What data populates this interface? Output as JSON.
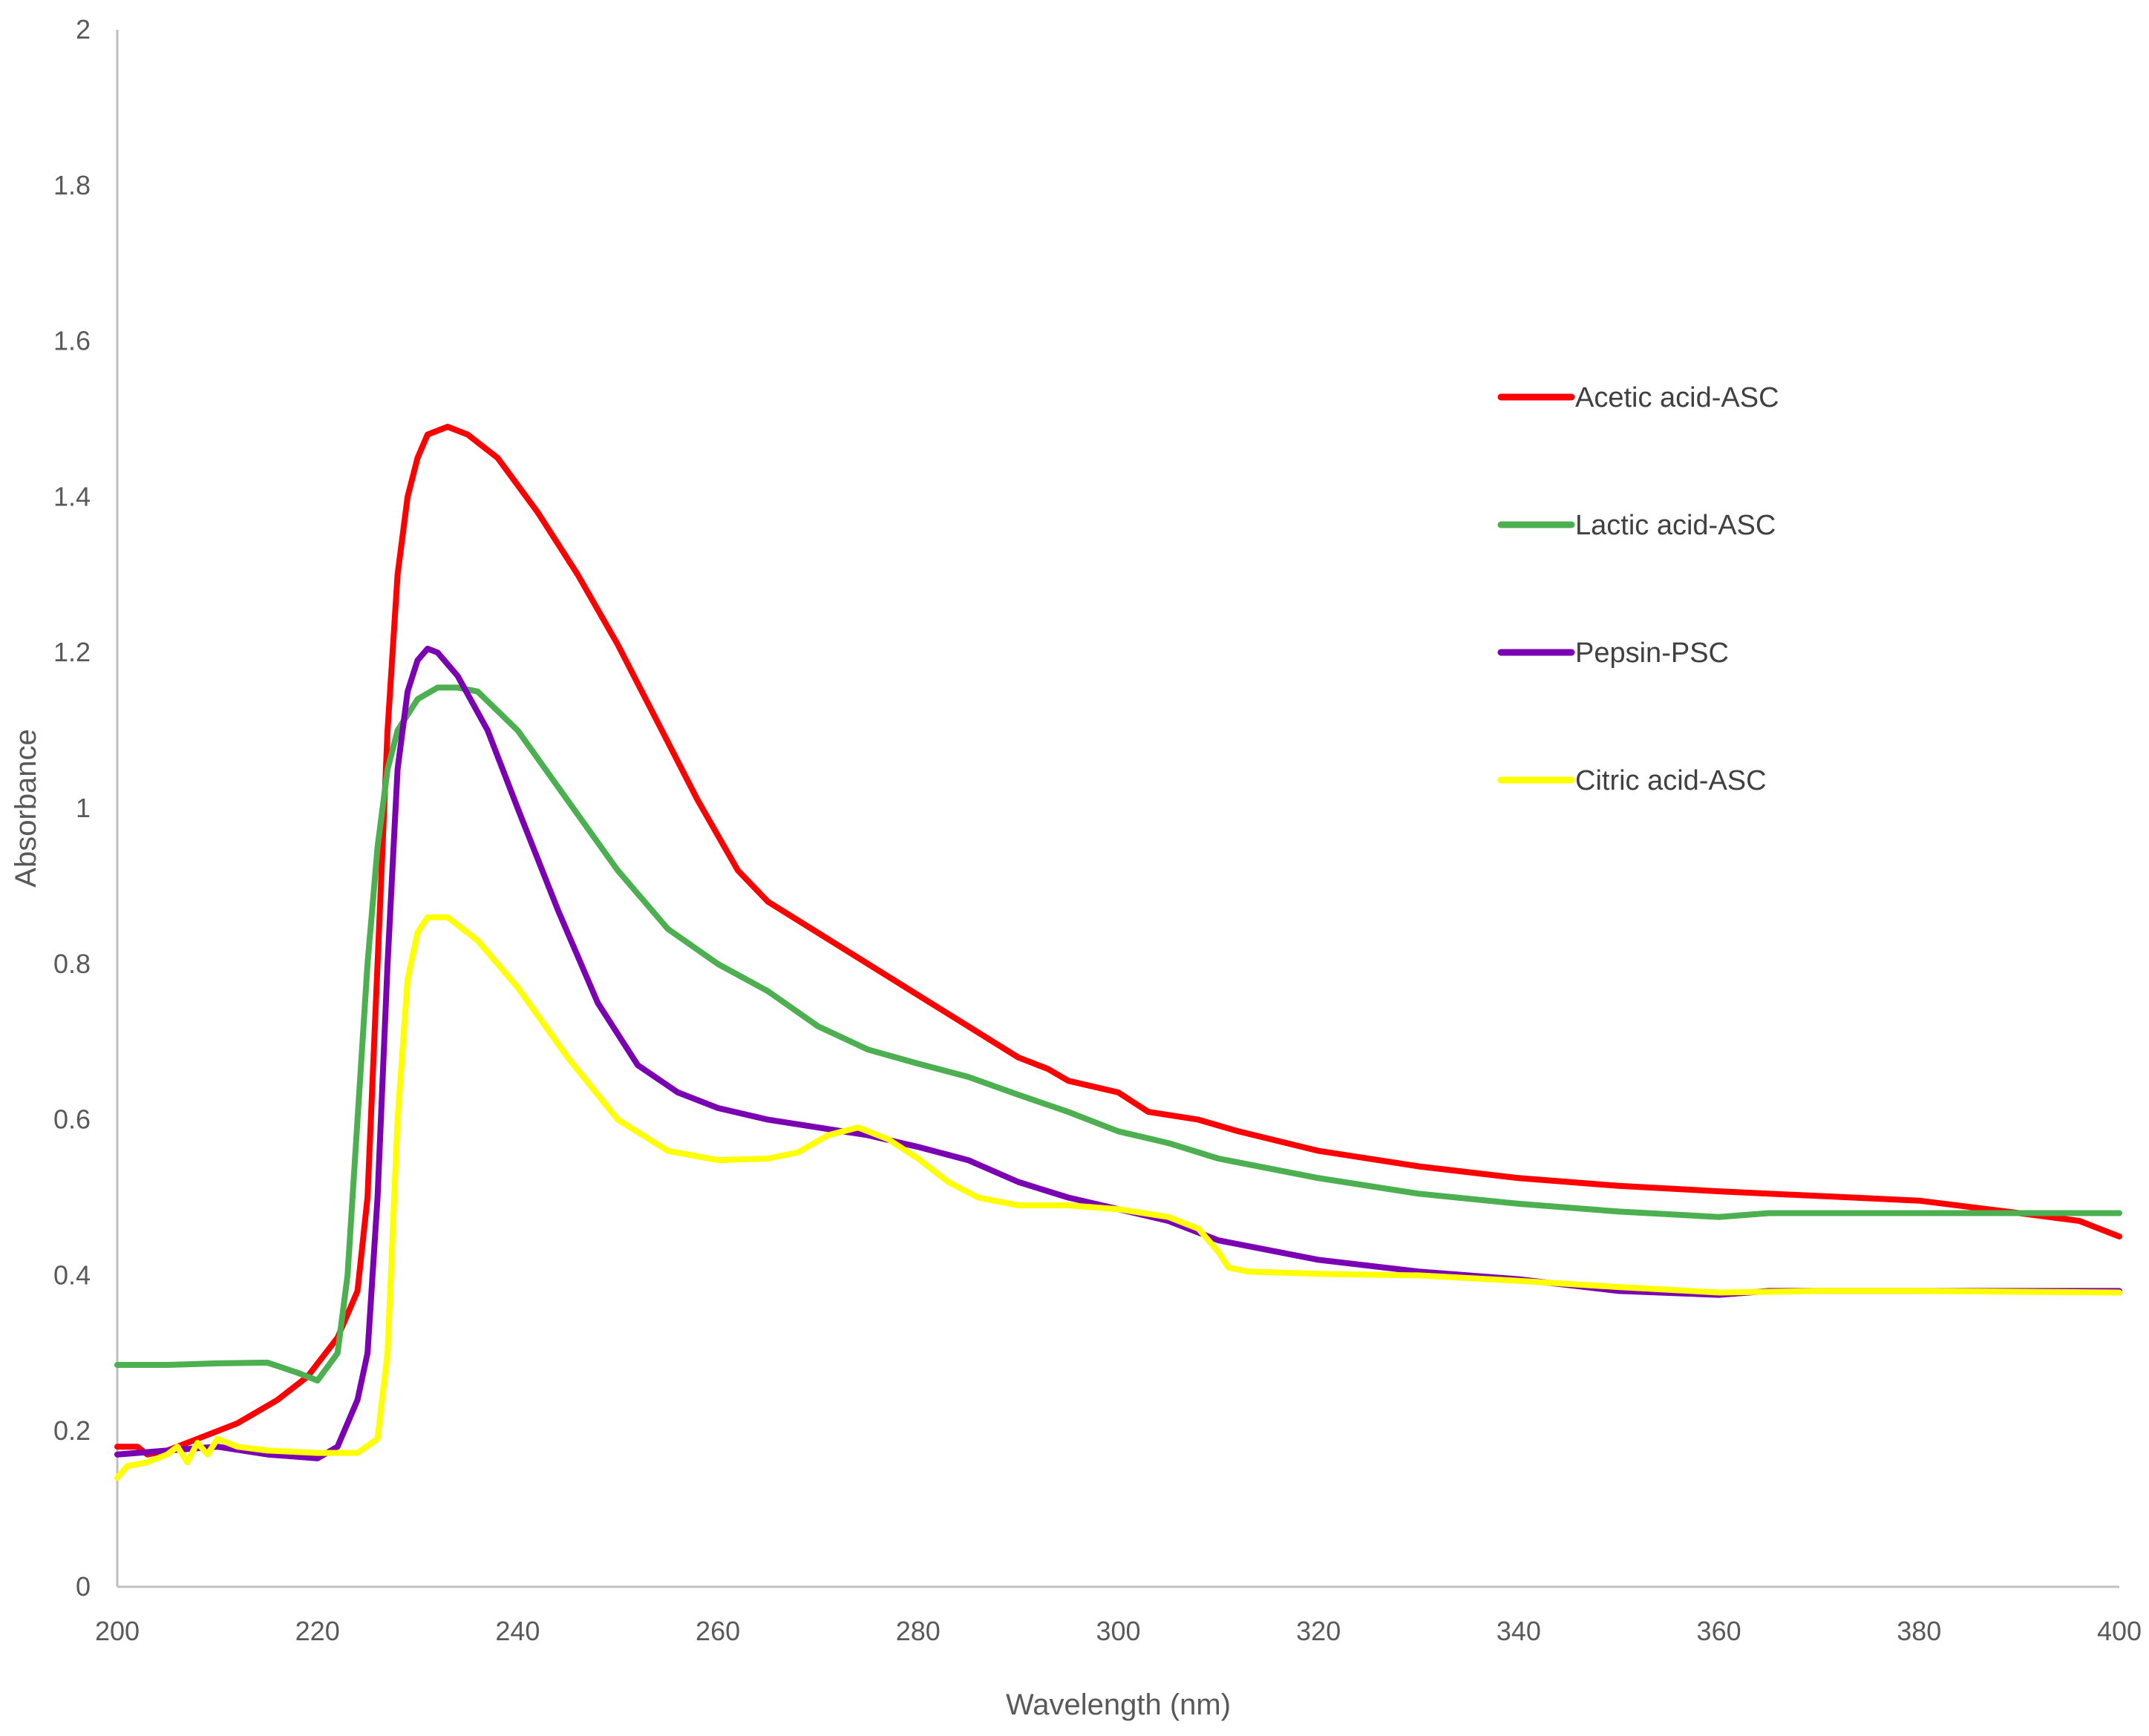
{
  "chart_data": {
    "type": "line",
    "title": "",
    "xlabel": "Wavelength (nm)",
    "ylabel": "Absorbance",
    "xlim": [
      200,
      400
    ],
    "ylim": [
      0,
      2
    ],
    "xticks": [
      "200",
      "220",
      "240",
      "260",
      "280",
      "300",
      "320",
      "340",
      "360",
      "380",
      "400"
    ],
    "yticks": [
      "0",
      "0.2",
      "0.4",
      "0.6",
      "0.8",
      "1",
      "1.2",
      "1.4",
      "1.6",
      "1.8",
      "2"
    ],
    "grid": false,
    "legend_position": "right",
    "series": [
      {
        "name": "Acetic acid-ASC",
        "color": "#ff0000",
        "points": [
          [
            200,
            0.18
          ],
          [
            202,
            0.18
          ],
          [
            203,
            0.17
          ],
          [
            205,
            0.175
          ],
          [
            208,
            0.19
          ],
          [
            212,
            0.21
          ],
          [
            216,
            0.24
          ],
          [
            219,
            0.27
          ],
          [
            222,
            0.32
          ],
          [
            224,
            0.38
          ],
          [
            225,
            0.5
          ],
          [
            226,
            0.8
          ],
          [
            227,
            1.1
          ],
          [
            228,
            1.3
          ],
          [
            229,
            1.4
          ],
          [
            230,
            1.45
          ],
          [
            231,
            1.48
          ],
          [
            233,
            1.49
          ],
          [
            235,
            1.48
          ],
          [
            238,
            1.45
          ],
          [
            242,
            1.38
          ],
          [
            246,
            1.3
          ],
          [
            250,
            1.21
          ],
          [
            254,
            1.11
          ],
          [
            258,
            1.01
          ],
          [
            262,
            0.92
          ],
          [
            265,
            0.88
          ],
          [
            270,
            0.84
          ],
          [
            275,
            0.8
          ],
          [
            280,
            0.76
          ],
          [
            285,
            0.72
          ],
          [
            290,
            0.68
          ],
          [
            293,
            0.665
          ],
          [
            295,
            0.65
          ],
          [
            300,
            0.635
          ],
          [
            303,
            0.61
          ],
          [
            308,
            0.6
          ],
          [
            312,
            0.585
          ],
          [
            320,
            0.56
          ],
          [
            330,
            0.54
          ],
          [
            340,
            0.525
          ],
          [
            350,
            0.515
          ],
          [
            360,
            0.508
          ],
          [
            370,
            0.502
          ],
          [
            380,
            0.496
          ],
          [
            390,
            0.48
          ],
          [
            396,
            0.47
          ],
          [
            400,
            0.45
          ]
        ]
      },
      {
        "name": "Lactic acid-ASC",
        "color": "#4caf50",
        "points": [
          [
            200,
            0.285
          ],
          [
            205,
            0.285
          ],
          [
            210,
            0.287
          ],
          [
            215,
            0.288
          ],
          [
            218,
            0.275
          ],
          [
            220,
            0.265
          ],
          [
            222,
            0.3
          ],
          [
            223,
            0.4
          ],
          [
            224,
            0.6
          ],
          [
            225,
            0.8
          ],
          [
            226,
            0.95
          ],
          [
            227,
            1.05
          ],
          [
            228,
            1.1
          ],
          [
            230,
            1.14
          ],
          [
            232,
            1.155
          ],
          [
            234,
            1.155
          ],
          [
            236,
            1.15
          ],
          [
            240,
            1.1
          ],
          [
            245,
            1.01
          ],
          [
            250,
            0.92
          ],
          [
            255,
            0.845
          ],
          [
            260,
            0.8
          ],
          [
            265,
            0.765
          ],
          [
            270,
            0.72
          ],
          [
            275,
            0.69
          ],
          [
            280,
            0.672
          ],
          [
            285,
            0.655
          ],
          [
            290,
            0.632
          ],
          [
            295,
            0.61
          ],
          [
            300,
            0.585
          ],
          [
            305,
            0.57
          ],
          [
            310,
            0.55
          ],
          [
            320,
            0.525
          ],
          [
            330,
            0.505
          ],
          [
            340,
            0.492
          ],
          [
            350,
            0.482
          ],
          [
            360,
            0.475
          ],
          [
            365,
            0.48
          ],
          [
            370,
            0.48
          ],
          [
            380,
            0.48
          ],
          [
            390,
            0.48
          ],
          [
            400,
            0.48
          ]
        ]
      },
      {
        "name": "Pepsin-PSC",
        "color": "#7b00b4",
        "points": [
          [
            200,
            0.17
          ],
          [
            205,
            0.175
          ],
          [
            210,
            0.18
          ],
          [
            215,
            0.17
          ],
          [
            220,
            0.165
          ],
          [
            222,
            0.18
          ],
          [
            224,
            0.24
          ],
          [
            225,
            0.3
          ],
          [
            226,
            0.5
          ],
          [
            227,
            0.8
          ],
          [
            228,
            1.05
          ],
          [
            229,
            1.15
          ],
          [
            230,
            1.19
          ],
          [
            231,
            1.205
          ],
          [
            232,
            1.2
          ],
          [
            234,
            1.17
          ],
          [
            237,
            1.1
          ],
          [
            240,
            1.0
          ],
          [
            244,
            0.87
          ],
          [
            248,
            0.75
          ],
          [
            252,
            0.67
          ],
          [
            256,
            0.635
          ],
          [
            260,
            0.615
          ],
          [
            265,
            0.6
          ],
          [
            270,
            0.59
          ],
          [
            275,
            0.58
          ],
          [
            280,
            0.565
          ],
          [
            285,
            0.548
          ],
          [
            290,
            0.52
          ],
          [
            295,
            0.5
          ],
          [
            300,
            0.485
          ],
          [
            305,
            0.47
          ],
          [
            310,
            0.445
          ],
          [
            320,
            0.42
          ],
          [
            330,
            0.405
          ],
          [
            340,
            0.395
          ],
          [
            350,
            0.38
          ],
          [
            360,
            0.375
          ],
          [
            365,
            0.38
          ],
          [
            370,
            0.38
          ],
          [
            380,
            0.38
          ],
          [
            400,
            0.38
          ]
        ]
      },
      {
        "name": "Citric acid-ASC",
        "color": "#ffff00",
        "points": [
          [
            200,
            0.14
          ],
          [
            201,
            0.155
          ],
          [
            203,
            0.16
          ],
          [
            205,
            0.17
          ],
          [
            206,
            0.18
          ],
          [
            207,
            0.16
          ],
          [
            208,
            0.185
          ],
          [
            209,
            0.17
          ],
          [
            210,
            0.19
          ],
          [
            212,
            0.18
          ],
          [
            215,
            0.175
          ],
          [
            220,
            0.172
          ],
          [
            224,
            0.172
          ],
          [
            226,
            0.19
          ],
          [
            227,
            0.3
          ],
          [
            228,
            0.6
          ],
          [
            229,
            0.78
          ],
          [
            230,
            0.84
          ],
          [
            231,
            0.86
          ],
          [
            233,
            0.86
          ],
          [
            236,
            0.83
          ],
          [
            240,
            0.77
          ],
          [
            245,
            0.68
          ],
          [
            250,
            0.6
          ],
          [
            255,
            0.56
          ],
          [
            260,
            0.548
          ],
          [
            265,
            0.55
          ],
          [
            268,
            0.558
          ],
          [
            271,
            0.58
          ],
          [
            274,
            0.59
          ],
          [
            277,
            0.575
          ],
          [
            280,
            0.55
          ],
          [
            283,
            0.52
          ],
          [
            286,
            0.5
          ],
          [
            290,
            0.49
          ],
          [
            295,
            0.49
          ],
          [
            300,
            0.485
          ],
          [
            305,
            0.475
          ],
          [
            308,
            0.46
          ],
          [
            310,
            0.43
          ],
          [
            311,
            0.41
          ],
          [
            313,
            0.405
          ],
          [
            320,
            0.402
          ],
          [
            330,
            0.4
          ],
          [
            340,
            0.393
          ],
          [
            350,
            0.385
          ],
          [
            360,
            0.378
          ],
          [
            370,
            0.38
          ],
          [
            380,
            0.38
          ],
          [
            400,
            0.378
          ]
        ]
      }
    ]
  }
}
